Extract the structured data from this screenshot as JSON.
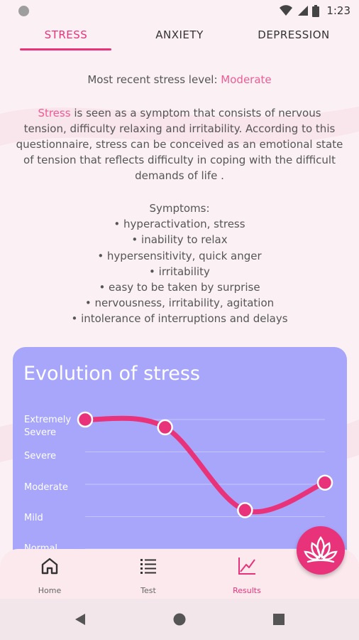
{
  "status_bar": {
    "time": "1:23",
    "icons": [
      "wifi-icon",
      "signal-icon",
      "battery-icon"
    ]
  },
  "tabs": [
    {
      "label": "STRESS",
      "active": true
    },
    {
      "label": "ANXIETY",
      "active": false
    },
    {
      "label": "DEPRESSION",
      "active": false
    }
  ],
  "recent": {
    "prefix": "Most recent stress level: ",
    "level": "Moderate"
  },
  "description": {
    "highlight": "Stress",
    "text": " is seen as a symptom that consists of nervous tension, difficulty relaxing and irritability. According to this questionnaire, stress can be conceived as an emotional state of tension that reflects difficulty in coping with the difficult demands of life ."
  },
  "symptoms": {
    "title": "Symptoms:",
    "items": [
      "• hyperactivation, stress",
      "• inability to relax",
      "• hypersensitivity, quick anger",
      "• irritability",
      "• easy to be taken by surprise",
      "• nervousness, irritability, agitation",
      "• intolerance of interruptions and delays"
    ]
  },
  "chart": {
    "title": "Evolution of stress",
    "y_labels": [
      "Extremely Severe",
      "Severe",
      "Moderate",
      "Mild",
      "Normal"
    ]
  },
  "chart_data": {
    "type": "line",
    "title": "Evolution of stress",
    "y_categories": [
      "Normal",
      "Mild",
      "Moderate",
      "Severe",
      "Extremely Severe"
    ],
    "series": [
      {
        "values": [
          4,
          3.76,
          1.2,
          2.05
        ]
      }
    ],
    "ylim": [
      0,
      4
    ],
    "grid": true,
    "colors": {
      "line": "#e8337a",
      "card": "#a8a6fb"
    }
  },
  "bottom_nav": [
    {
      "label": "Home",
      "icon": "home-icon",
      "active": false
    },
    {
      "label": "Test",
      "icon": "list-icon",
      "active": false
    },
    {
      "label": "Results",
      "icon": "chart-icon",
      "active": true
    }
  ],
  "fab": {
    "icon": "lotus-icon"
  },
  "system_nav": [
    "back-icon",
    "home-circle-icon",
    "recents-icon"
  ],
  "colors": {
    "accent": "#e8337a",
    "accent_light": "#ef5b93",
    "background": "#fbf1f4",
    "chart_card": "#a8a6fb"
  }
}
